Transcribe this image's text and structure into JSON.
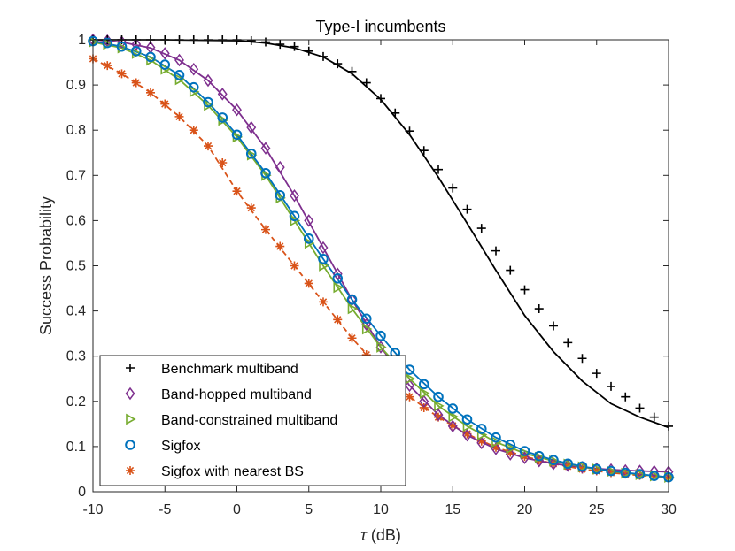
{
  "chart_data": {
    "type": "line",
    "title": "Type-I incumbents",
    "xlabel_symbol": "τ",
    "xlabel_unit": " (dB)",
    "ylabel": "Success Probability",
    "xlim": [
      -10,
      30
    ],
    "ylim": [
      0,
      1
    ],
    "xticks": [
      -10,
      -5,
      0,
      5,
      10,
      15,
      20,
      25,
      30
    ],
    "yticks": [
      0,
      0.1,
      0.2,
      0.3,
      0.4,
      0.5,
      0.6,
      0.7,
      0.8,
      0.9,
      1
    ],
    "ytick_labels": [
      "0",
      "0.1",
      "0.2",
      "0.3",
      "0.4",
      "0.5",
      "0.6",
      "0.7",
      "0.8",
      "0.9",
      "1"
    ],
    "legend_position": "bottom-left",
    "series": [
      {
        "name": "Benchmark multiband",
        "color": "#000000",
        "marker": "plus",
        "line_style": "solid",
        "line": {
          "x": [
            -10,
            -5,
            0,
            2,
            4,
            6,
            8,
            10,
            12,
            14,
            16,
            18,
            20,
            22,
            24,
            26,
            28,
            30
          ],
          "y": [
            1.0,
            1.0,
            0.998,
            0.993,
            0.982,
            0.962,
            0.925,
            0.868,
            0.79,
            0.696,
            0.594,
            0.49,
            0.39,
            0.31,
            0.245,
            0.195,
            0.165,
            0.142
          ]
        },
        "markers": {
          "x": [
            -10,
            -9,
            -8,
            -7,
            -6,
            -5,
            -4,
            -3,
            -2,
            -1,
            0,
            1,
            2,
            3,
            4,
            5,
            6,
            7,
            8,
            9,
            10,
            11,
            12,
            13,
            14,
            15,
            16,
            17,
            18,
            19,
            20,
            21,
            22,
            23,
            24,
            25,
            26,
            27,
            28,
            29,
            30
          ],
          "y": [
            1.0,
            1.0,
            1.0,
            1.0,
            1.0,
            1.0,
            1.0,
            1.0,
            1.0,
            1.0,
            1.0,
            0.998,
            0.995,
            0.99,
            0.985,
            0.975,
            0.963,
            0.947,
            0.93,
            0.905,
            0.87,
            0.838,
            0.798,
            0.755,
            0.713,
            0.672,
            0.625,
            0.583,
            0.533,
            0.49,
            0.447,
            0.405,
            0.367,
            0.33,
            0.295,
            0.262,
            0.233,
            0.21,
            0.185,
            0.165,
            0.145
          ]
        }
      },
      {
        "name": "Band-hopped multiband",
        "color": "#7E2F8E",
        "marker": "diamond",
        "line_style": "solid",
        "line": {
          "x": [
            -10,
            -8,
            -6,
            -4,
            -2,
            0,
            2,
            4,
            6,
            8,
            10,
            12,
            14,
            16,
            18,
            20,
            22,
            24,
            26,
            28,
            30
          ],
          "y": [
            1.0,
            0.995,
            0.982,
            0.955,
            0.91,
            0.845,
            0.76,
            0.655,
            0.54,
            0.425,
            0.32,
            0.235,
            0.17,
            0.125,
            0.095,
            0.075,
            0.062,
            0.054,
            0.049,
            0.046,
            0.044
          ]
        },
        "markers": {
          "x": [
            -10,
            -9,
            -8,
            -7,
            -6,
            -5,
            -4,
            -3,
            -2,
            -1,
            0,
            1,
            2,
            3,
            4,
            5,
            6,
            7,
            8,
            9,
            10,
            11,
            12,
            13,
            14,
            15,
            16,
            17,
            18,
            19,
            20,
            21,
            22,
            23,
            24,
            25,
            26,
            27,
            28,
            29,
            30
          ],
          "y": [
            1.0,
            0.998,
            0.995,
            0.99,
            0.983,
            0.97,
            0.955,
            0.935,
            0.91,
            0.88,
            0.845,
            0.806,
            0.76,
            0.718,
            0.655,
            0.6,
            0.54,
            0.482,
            0.425,
            0.37,
            0.32,
            0.275,
            0.235,
            0.2,
            0.17,
            0.145,
            0.125,
            0.108,
            0.095,
            0.083,
            0.075,
            0.068,
            0.062,
            0.058,
            0.054,
            0.051,
            0.049,
            0.047,
            0.046,
            0.045,
            0.044
          ]
        }
      },
      {
        "name": "Band-constrained multiband",
        "color": "#77AC30",
        "marker": "triangle-right",
        "line_style": "solid",
        "line": {
          "x": [
            -10,
            -8,
            -6,
            -4,
            -2,
            0,
            2,
            4,
            6,
            8,
            10,
            12,
            14,
            16,
            18,
            20,
            22,
            24,
            26,
            28,
            30
          ],
          "y": [
            0.995,
            0.982,
            0.955,
            0.912,
            0.855,
            0.785,
            0.7,
            0.6,
            0.5,
            0.405,
            0.32,
            0.25,
            0.19,
            0.145,
            0.11,
            0.085,
            0.068,
            0.055,
            0.045,
            0.038,
            0.032
          ]
        },
        "markers": {
          "x": [
            -10,
            -9,
            -8,
            -7,
            -6,
            -5,
            -4,
            -3,
            -2,
            -1,
            0,
            1,
            2,
            3,
            4,
            5,
            6,
            7,
            8,
            9,
            10,
            11,
            12,
            13,
            14,
            15,
            16,
            17,
            18,
            19,
            20,
            21,
            22,
            23,
            24,
            25,
            26,
            27,
            28,
            29,
            30
          ],
          "y": [
            0.995,
            0.99,
            0.982,
            0.97,
            0.955,
            0.935,
            0.912,
            0.885,
            0.855,
            0.822,
            0.785,
            0.745,
            0.7,
            0.65,
            0.6,
            0.55,
            0.5,
            0.452,
            0.405,
            0.36,
            0.32,
            0.283,
            0.25,
            0.218,
            0.19,
            0.166,
            0.145,
            0.126,
            0.11,
            0.096,
            0.085,
            0.076,
            0.068,
            0.061,
            0.055,
            0.05,
            0.045,
            0.041,
            0.038,
            0.035,
            0.032
          ]
        }
      },
      {
        "name": "Sigfox",
        "color": "#0072BD",
        "marker": "circle",
        "line_style": "solid",
        "line": {
          "x": [
            -10,
            -8,
            -6,
            -4,
            -2,
            0,
            2,
            4,
            6,
            8,
            10,
            12,
            14,
            16,
            18,
            20,
            22,
            24,
            26,
            28,
            30
          ],
          "y": [
            0.997,
            0.985,
            0.962,
            0.922,
            0.862,
            0.79,
            0.705,
            0.61,
            0.515,
            0.425,
            0.345,
            0.27,
            0.21,
            0.16,
            0.12,
            0.09,
            0.07,
            0.056,
            0.046,
            0.039,
            0.032
          ]
        },
        "markers": {
          "x": [
            -10,
            -9,
            -8,
            -7,
            -6,
            -5,
            -4,
            -3,
            -2,
            -1,
            0,
            1,
            2,
            3,
            4,
            5,
            6,
            7,
            8,
            9,
            10,
            11,
            12,
            13,
            14,
            15,
            16,
            17,
            18,
            19,
            20,
            21,
            22,
            23,
            24,
            25,
            26,
            27,
            28,
            29,
            30
          ],
          "y": [
            0.997,
            0.993,
            0.985,
            0.975,
            0.962,
            0.945,
            0.922,
            0.895,
            0.862,
            0.828,
            0.79,
            0.748,
            0.705,
            0.656,
            0.61,
            0.56,
            0.515,
            0.472,
            0.425,
            0.383,
            0.345,
            0.307,
            0.27,
            0.238,
            0.21,
            0.184,
            0.16,
            0.139,
            0.12,
            0.104,
            0.09,
            0.079,
            0.07,
            0.062,
            0.056,
            0.05,
            0.046,
            0.042,
            0.039,
            0.035,
            0.032
          ]
        }
      },
      {
        "name": "Sigfox with nearest BS",
        "color": "#D95319",
        "marker": "asterisk",
        "line_style": "dashed",
        "line": {
          "x": [
            -10,
            -8,
            -6,
            -4,
            -2,
            0,
            2,
            4,
            6,
            8,
            10,
            12,
            14,
            16,
            18,
            20,
            22,
            24,
            26,
            28,
            30
          ],
          "y": [
            0.958,
            0.925,
            0.883,
            0.83,
            0.765,
            0.665,
            0.58,
            0.5,
            0.42,
            0.34,
            0.27,
            0.21,
            0.165,
            0.128,
            0.098,
            0.078,
            0.062,
            0.05,
            0.042,
            0.036,
            0.032
          ]
        },
        "markers": {
          "x": [
            -10,
            -9,
            -8,
            -7,
            -6,
            -5,
            -4,
            -3,
            -2,
            -1,
            0,
            1,
            2,
            3,
            4,
            5,
            6,
            7,
            8,
            9,
            10,
            11,
            12,
            13,
            14,
            15,
            16,
            17,
            18,
            19,
            20,
            21,
            22,
            23,
            24,
            25,
            26,
            27,
            28,
            29,
            30
          ],
          "y": [
            0.958,
            0.943,
            0.925,
            0.905,
            0.883,
            0.858,
            0.83,
            0.8,
            0.765,
            0.728,
            0.665,
            0.628,
            0.58,
            0.543,
            0.5,
            0.461,
            0.42,
            0.381,
            0.34,
            0.303,
            0.27,
            0.238,
            0.21,
            0.186,
            0.165,
            0.146,
            0.128,
            0.112,
            0.098,
            0.087,
            0.078,
            0.07,
            0.062,
            0.056,
            0.05,
            0.046,
            0.042,
            0.039,
            0.036,
            0.034,
            0.032
          ]
        }
      }
    ]
  }
}
